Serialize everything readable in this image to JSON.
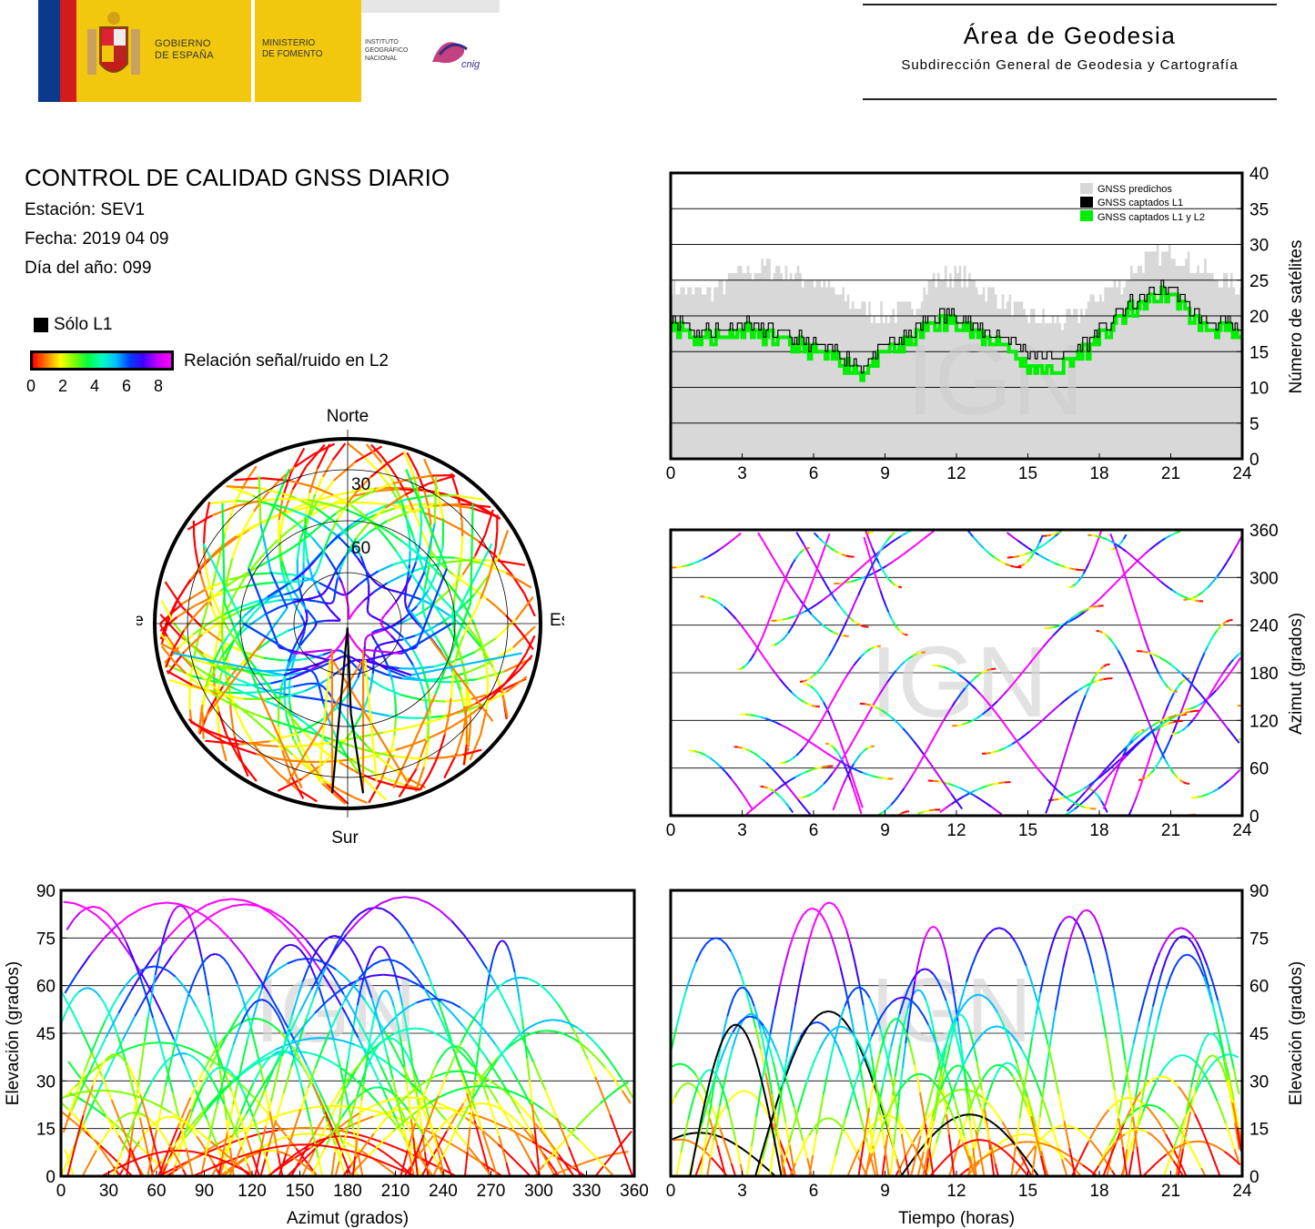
{
  "header": {
    "gov_line1": "GOBIERNO",
    "gov_line2": "DE ESPAÑA",
    "min_line1": "MINISTERIO",
    "min_line2": "DE FOMENTO",
    "ign_line1": "INSTITUTO",
    "ign_line2": "GEOGRÁFICO",
    "ign_line3": "NACIONAL",
    "cnig": "cnig",
    "area_title": "Área de Geodesia",
    "area_subtitle": "Subdirección General de Geodesia y Cartografía"
  },
  "info": {
    "title": "CONTROL DE CALIDAD GNSS DIARIO",
    "station": "Estación: SEV1",
    "date": "Fecha: 2019 04 09",
    "doy": "Día del año: 099"
  },
  "legend": {
    "l1_only": "Sólo L1",
    "snr_label": "Relación señal/ruido en L2",
    "snr_ticks": [
      "0",
      "2",
      "4",
      "6",
      "8"
    ]
  },
  "watermark": "IGN",
  "colors": {
    "predicted": "#d8d8d8",
    "l1": "#000000",
    "l1l2": "#00ee00",
    "snr_gradient": [
      "#ff0000",
      "#ff8000",
      "#ffff00",
      "#80ff00",
      "#00ff40",
      "#00ffc0",
      "#00c0ff",
      "#0040ff",
      "#4000ff",
      "#c000ff",
      "#ff00ff"
    ]
  },
  "chart_data": [
    {
      "id": "skyplot",
      "type": "scatter",
      "projection": "polar",
      "cardinals": {
        "north": "Norte",
        "south": "Sur",
        "east": "Este",
        "west": "Oeste"
      },
      "elevation_rings": [
        "30",
        "60"
      ],
      "tracks": [
        {
          "az": [
            30,
            40,
            55,
            75,
            100,
            125
          ],
          "el": [
            5,
            25,
            45,
            60,
            50,
            5
          ]
        },
        {
          "az": [
            330,
            320,
            305,
            285,
            260,
            235
          ],
          "el": [
            5,
            25,
            45,
            60,
            50,
            5
          ]
        },
        {
          "az": [
            20,
            60,
            110,
            160,
            200
          ],
          "el": [
            8,
            35,
            55,
            70,
            5
          ]
        },
        {
          "az": [
            340,
            300,
            250,
            200,
            160
          ],
          "el": [
            8,
            35,
            55,
            70,
            5
          ]
        },
        {
          "az": [
            60,
            90,
            120,
            150,
            175
          ],
          "el": [
            10,
            40,
            60,
            75,
            5
          ]
        },
        {
          "az": [
            300,
            270,
            240,
            210,
            185
          ],
          "el": [
            10,
            40,
            60,
            75,
            5
          ]
        },
        {
          "az": [
            175,
            178,
            182,
            185
          ],
          "el": [
            5,
            45,
            88,
            5
          ]
        },
        {
          "az": [
            45,
            80,
            130,
            165
          ],
          "el": [
            5,
            30,
            35,
            5
          ]
        },
        {
          "az": [
            315,
            280,
            230,
            195
          ],
          "el": [
            5,
            30,
            35,
            5
          ]
        },
        {
          "az": [
            100,
            130,
            155,
            170
          ],
          "el": [
            5,
            50,
            70,
            10
          ]
        },
        {
          "az": [
            260,
            230,
            205,
            190
          ],
          "el": [
            5,
            50,
            70,
            10
          ]
        }
      ]
    },
    {
      "id": "nsat",
      "type": "area",
      "xlabel": "",
      "ylabel": "Número de satélites",
      "xlim": [
        0,
        24
      ],
      "ylim": [
        0,
        40
      ],
      "xticks": [
        0,
        3,
        6,
        9,
        12,
        15,
        18,
        21,
        24
      ],
      "yticks": [
        0,
        5,
        10,
        15,
        20,
        25,
        30,
        35,
        40
      ],
      "legend": [
        "GNSS predichos",
        "GNSS captados L1",
        "GNSS captados L1 y L2"
      ],
      "legend_position": "top-right",
      "x": [
        0,
        1,
        2,
        3,
        4,
        5,
        6,
        7,
        8,
        9,
        10,
        11,
        12,
        13,
        14,
        15,
        16,
        17,
        18,
        19,
        20,
        21,
        22,
        23,
        24
      ],
      "series": [
        {
          "name": "GNSS predichos",
          "values": [
            24,
            23,
            24,
            26,
            27,
            26,
            25,
            23,
            21,
            20,
            21,
            25,
            26,
            24,
            22,
            20,
            19,
            20,
            23,
            25,
            28,
            29,
            27,
            25,
            24
          ]
        },
        {
          "name": "GNSS captados L1",
          "values": [
            20,
            18,
            18,
            19,
            18,
            17,
            16,
            15,
            13,
            16,
            17,
            20,
            20,
            18,
            17,
            15,
            14,
            15,
            18,
            21,
            23,
            24,
            20,
            19,
            18
          ]
        },
        {
          "name": "GNSS captados L1 y L2",
          "values": [
            19,
            17,
            17,
            18,
            17,
            16,
            15,
            14,
            12,
            15,
            16,
            19,
            19,
            17,
            16,
            13,
            12,
            14,
            17,
            20,
            22,
            23,
            19,
            18,
            17
          ]
        }
      ]
    },
    {
      "id": "az_time",
      "type": "scatter",
      "xlabel": "",
      "ylabel": "Azimut (grados)",
      "xlim": [
        0,
        24
      ],
      "ylim": [
        0,
        360
      ],
      "xticks": [
        0,
        3,
        6,
        9,
        12,
        15,
        18,
        21,
        24
      ],
      "yticks": [
        0,
        60,
        120,
        180,
        240,
        300,
        360
      ]
    },
    {
      "id": "el_az",
      "type": "scatter",
      "xlabel": "Azimut (grados)",
      "ylabel": "Elevación (grados)",
      "xlim": [
        0,
        360
      ],
      "ylim": [
        0,
        90
      ],
      "xticks": [
        0,
        30,
        60,
        90,
        120,
        150,
        180,
        210,
        240,
        270,
        300,
        330,
        360
      ],
      "yticks": [
        0,
        15,
        30,
        45,
        60,
        75,
        90
      ]
    },
    {
      "id": "el_time",
      "type": "scatter",
      "xlabel": "Tiempo (horas)",
      "ylabel": "Elevación (grados)",
      "xlim": [
        0,
        24
      ],
      "ylim": [
        0,
        90
      ],
      "xticks": [
        0,
        3,
        6,
        9,
        12,
        15,
        18,
        21,
        24
      ],
      "yticks": [
        0,
        15,
        30,
        45,
        60,
        75,
        90
      ]
    }
  ]
}
